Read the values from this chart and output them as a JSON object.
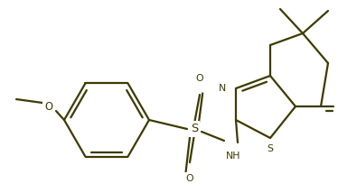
{
  "bg_color": "#ffffff",
  "line_color": "#3d3b00",
  "line_width": 1.6,
  "font_size": 7.8,
  "fig_width": 3.74,
  "fig_height": 2.14,
  "dpi": 100,
  "xlim": [
    0,
    374
  ],
  "ylim": [
    0,
    214
  ]
}
